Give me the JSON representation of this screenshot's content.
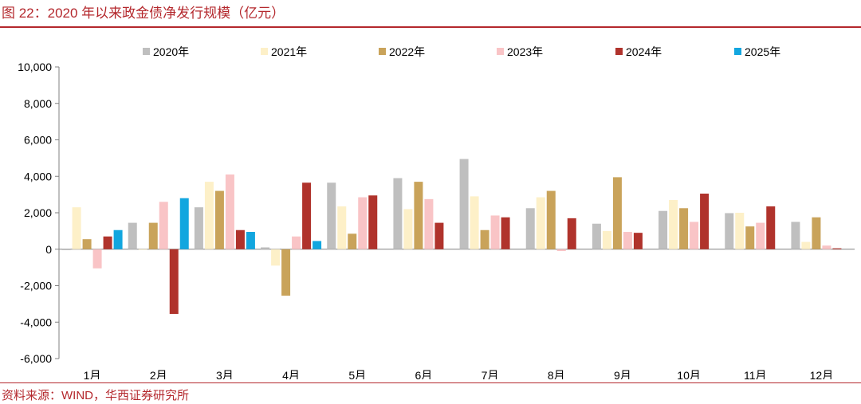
{
  "figure": {
    "title": "图 22：2020 年以来政金债净发行规模（亿元）",
    "source": "资料来源：WIND，华西证券研究所"
  },
  "colors": {
    "accent": "#b4282d",
    "series": [
      "#bfbfbf",
      "#fdf0c8",
      "#c9a35a",
      "#f9c4c6",
      "#b0332c",
      "#12a6df"
    ]
  },
  "chart_data": {
    "type": "bar",
    "categories": [
      "1月",
      "2月",
      "3月",
      "4月",
      "5月",
      "6月",
      "7月",
      "8月",
      "9月",
      "10月",
      "11月",
      "12月"
    ],
    "series": [
      {
        "name": "2020年",
        "values": [
          -50,
          1450,
          2300,
          100,
          3650,
          3900,
          4950,
          2250,
          1400,
          2100,
          1980,
          1500
        ]
      },
      {
        "name": "2021年",
        "values": [
          2300,
          0,
          3700,
          -900,
          2350,
          2200,
          2900,
          2850,
          1000,
          2700,
          2000,
          400
        ]
      },
      {
        "name": "2022年",
        "values": [
          550,
          1450,
          3200,
          -2550,
          850,
          3700,
          1050,
          3200,
          3950,
          2250,
          1250,
          1750
        ]
      },
      {
        "name": "2023年",
        "values": [
          -1050,
          2600,
          4100,
          700,
          2850,
          2750,
          1850,
          -100,
          950,
          1500,
          1450,
          200
        ]
      },
      {
        "name": "2024年",
        "values": [
          700,
          -3550,
          1050,
          3650,
          2950,
          1450,
          1750,
          1700,
          900,
          3050,
          2350,
          50
        ]
      },
      {
        "name": "2025年",
        "values": [
          1050,
          2800,
          950,
          450,
          null,
          null,
          null,
          null,
          null,
          null,
          null,
          null
        ]
      }
    ],
    "ylim": [
      -6000,
      10000
    ],
    "yticks": [
      -6000,
      -4000,
      -2000,
      0,
      2000,
      4000,
      6000,
      8000,
      10000
    ],
    "ytick_labels": [
      "-6,000",
      "-4,000",
      "-2,000",
      "0",
      "2,000",
      "4,000",
      "6,000",
      "8,000",
      "10,000"
    ],
    "xlabel": "",
    "ylabel": "",
    "grid": false,
    "legend": "top"
  }
}
